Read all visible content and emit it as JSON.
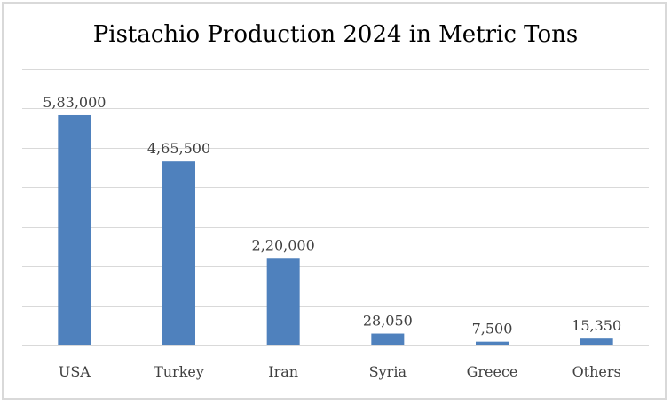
{
  "chart_data": {
    "type": "bar",
    "title": "Pistachio Production 2024 in Metric Tons",
    "categories": [
      "USA",
      "Turkey",
      "Iran",
      "Syria",
      "Greece",
      "Others"
    ],
    "values": [
      583000,
      465500,
      220000,
      28050,
      7500,
      15350
    ],
    "data_labels": [
      "5,83,000",
      "4,65,500",
      "2,20,000",
      "28,050",
      "7,500",
      "15,350"
    ],
    "xlabel": "",
    "ylabel": "",
    "ylim": [
      0,
      700000
    ],
    "y_gridline_step": 100000,
    "grid": true,
    "y_tick_labels_shown": false,
    "legend": "none",
    "colors": {
      "bar": "#4f81bd",
      "grid": "#d9d9d9",
      "text": "#404040",
      "title": "#000000"
    }
  }
}
